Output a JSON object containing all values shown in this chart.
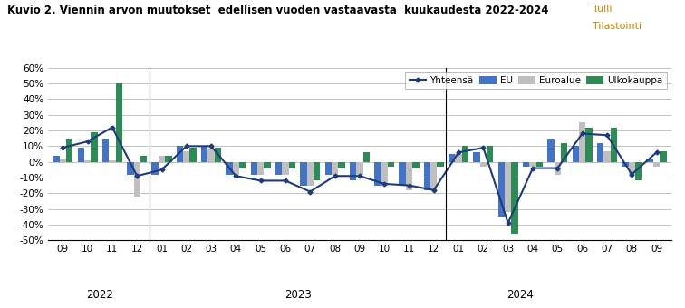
{
  "title": "Kuvio 2. Viennin arvon muutokset  edellisen vuoden vastaavasta  kuukaudesta 2022-2024",
  "watermark_line1": "Tulli",
  "watermark_line2": "Tilastointi",
  "colors": {
    "EU": "#4472C4",
    "Euroalue": "#BFBFBF",
    "Ulkokauppa": "#2E8B57",
    "Yhteensä": "#1F3A7A"
  },
  "months": [
    "09",
    "10",
    "11",
    "12",
    "01",
    "02",
    "03",
    "04",
    "05",
    "06",
    "07",
    "08",
    "09",
    "10",
    "11",
    "12",
    "01",
    "02",
    "03",
    "04",
    "05",
    "06",
    "07",
    "08",
    "09"
  ],
  "year_labels": [
    [
      "2022",
      1.5
    ],
    [
      "2023",
      9.5
    ],
    [
      "2024",
      18.5
    ]
  ],
  "year_sep": [
    3.5,
    15.5
  ],
  "EU": [
    4,
    9,
    15,
    -8,
    -8,
    10,
    10,
    -8,
    -8,
    -8,
    -15,
    -8,
    -12,
    -15,
    -15,
    -18,
    5,
    6,
    -35,
    -3,
    15,
    10,
    12,
    -3,
    2
  ],
  "Euroalue": [
    2,
    1,
    1,
    -22,
    4,
    7,
    8,
    -8,
    -8,
    -8,
    -15,
    -8,
    -8,
    -15,
    -18,
    -18,
    5,
    -3,
    -32,
    -3,
    -8,
    25,
    7,
    -8,
    -3
  ],
  "Ulkokauppa": [
    15,
    19,
    50,
    4,
    4,
    9,
    9,
    -4,
    -4,
    -4,
    -12,
    -4,
    6,
    -3,
    -4,
    -3,
    10,
    10,
    -46,
    -3,
    12,
    22,
    22,
    -12,
    7
  ],
  "Yhteensä": [
    9,
    13,
    22,
    -9,
    -5,
    10,
    10,
    -9,
    -12,
    -12,
    -19,
    -9,
    -9,
    -14,
    -15,
    -18,
    6,
    9,
    -39,
    -4,
    -4,
    18,
    17,
    -8,
    6
  ],
  "ylim": [
    -50,
    60
  ],
  "yticks": [
    -50,
    -40,
    -30,
    -20,
    -10,
    0,
    10,
    20,
    30,
    40,
    50,
    60
  ],
  "ytick_labels": [
    "-50%",
    "-40%",
    "-30%",
    "-20%",
    "-10%",
    "0%",
    "10%",
    "20%",
    "30%",
    "40%",
    "50%",
    "60%"
  ]
}
